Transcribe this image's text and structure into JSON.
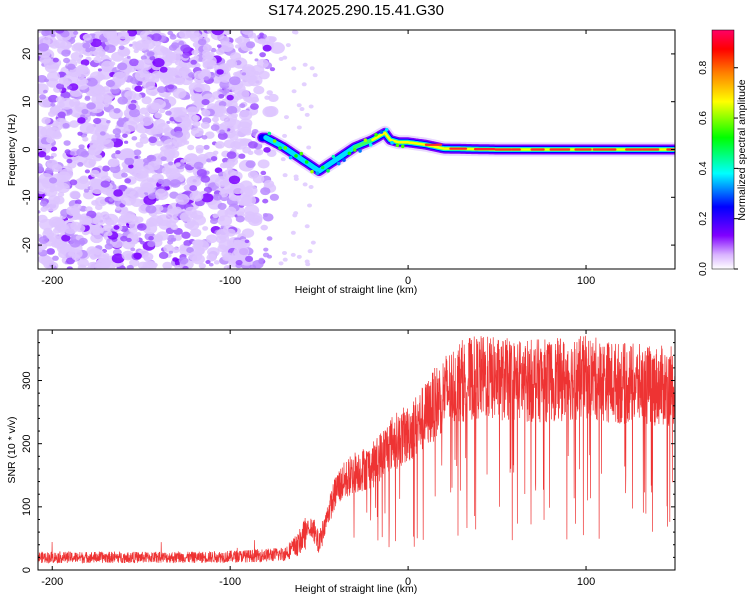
{
  "figure_title": "S174.2025.290.15.41.G30",
  "chart_data": [
    {
      "type": "heatmap",
      "title": "S174.2025.290.15.41.G30",
      "xlabel": "Height of straight line (km)",
      "ylabel": "Frequency (Hz)",
      "xlim": [
        -208,
        150
      ],
      "ylim": [
        -25,
        25
      ],
      "x_ticks": [
        -200,
        -100,
        0,
        100
      ],
      "y_ticks": [
        -20,
        -10,
        0,
        10,
        20
      ],
      "colorbar": {
        "label": "Normalized spectral amplitude",
        "range": [
          0,
          0.95
        ],
        "ticks": [
          0.0,
          0.2,
          0.4,
          0.6,
          0.8
        ],
        "colors": [
          "#ffffff",
          "#8000ff",
          "#0000ff",
          "#00ffff",
          "#00ff00",
          "#ffff00",
          "#ff8000",
          "#ff0000",
          "#ff0066"
        ]
      },
      "ridge": {
        "x": [
          -80,
          -70,
          -60,
          -50,
          -40,
          -30,
          -20,
          -13,
          -10,
          -5,
          0,
          10,
          20,
          50,
          100,
          150
        ],
        "frequency": [
          2.5,
          0.5,
          -2.0,
          -4.5,
          -2.0,
          0.5,
          2.0,
          3.5,
          2.0,
          1.5,
          1.5,
          1.0,
          0.2,
          0.0,
          0.0,
          0.0
        ]
      },
      "noise_region_x": [
        -208,
        -72
      ]
    },
    {
      "type": "line",
      "xlabel": "Height of straight line (km)",
      "ylabel": "SNR (10 * v/v)",
      "xlim": [
        -208,
        150
      ],
      "ylim": [
        0,
        380
      ],
      "x_ticks": [
        -200,
        -100,
        0,
        100
      ],
      "y_ticks": [
        0,
        100,
        200,
        300
      ],
      "series": [
        {
          "name": "SNR",
          "color": "#ee3333",
          "x": [
            -208,
            -180,
            -150,
            -120,
            -90,
            -70,
            -62,
            -55,
            -50,
            -45,
            -40,
            -30,
            -20,
            -10,
            0,
            10,
            20,
            30,
            40,
            60,
            80,
            100,
            120,
            150
          ],
          "values": [
            20,
            20,
            20,
            20,
            22,
            25,
            40,
            70,
            40,
            90,
            130,
            155,
            165,
            200,
            215,
            245,
            280,
            300,
            305,
            300,
            300,
            305,
            295,
            290
          ]
        }
      ]
    }
  ]
}
